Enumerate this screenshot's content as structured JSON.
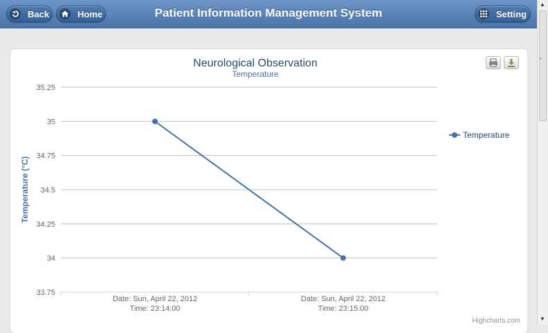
{
  "header": {
    "back_label": "Back",
    "home_label": "Home",
    "title": "Patient Information Management System",
    "setting_label": "Setting"
  },
  "chart_data": {
    "type": "line",
    "title": "Neurological Observation",
    "subtitle": "Temperature",
    "ylabel": "Temperature (°C)",
    "ylim": [
      33.75,
      35.25
    ],
    "yticks": [
      "35.25",
      "35",
      "34.75",
      "34.5",
      "34.25",
      "34",
      "33.75"
    ],
    "categories": [
      [
        "Date: Sun, April 22, 2012",
        "Time: 23:14:00"
      ],
      [
        "Date: Sun, April 22, 2012",
        "Time: 23:15:00"
      ]
    ],
    "series": [
      {
        "name": "Temperature",
        "values": [
          35,
          34
        ],
        "color": "#4572a7"
      }
    ],
    "legend_position": "right",
    "grid": true,
    "credits": "Highcharts.com"
  },
  "icons": {
    "back": "back-arrow-icon",
    "home": "home-icon",
    "setting": "grid-icon",
    "print": "print-icon",
    "export": "download-icon"
  }
}
